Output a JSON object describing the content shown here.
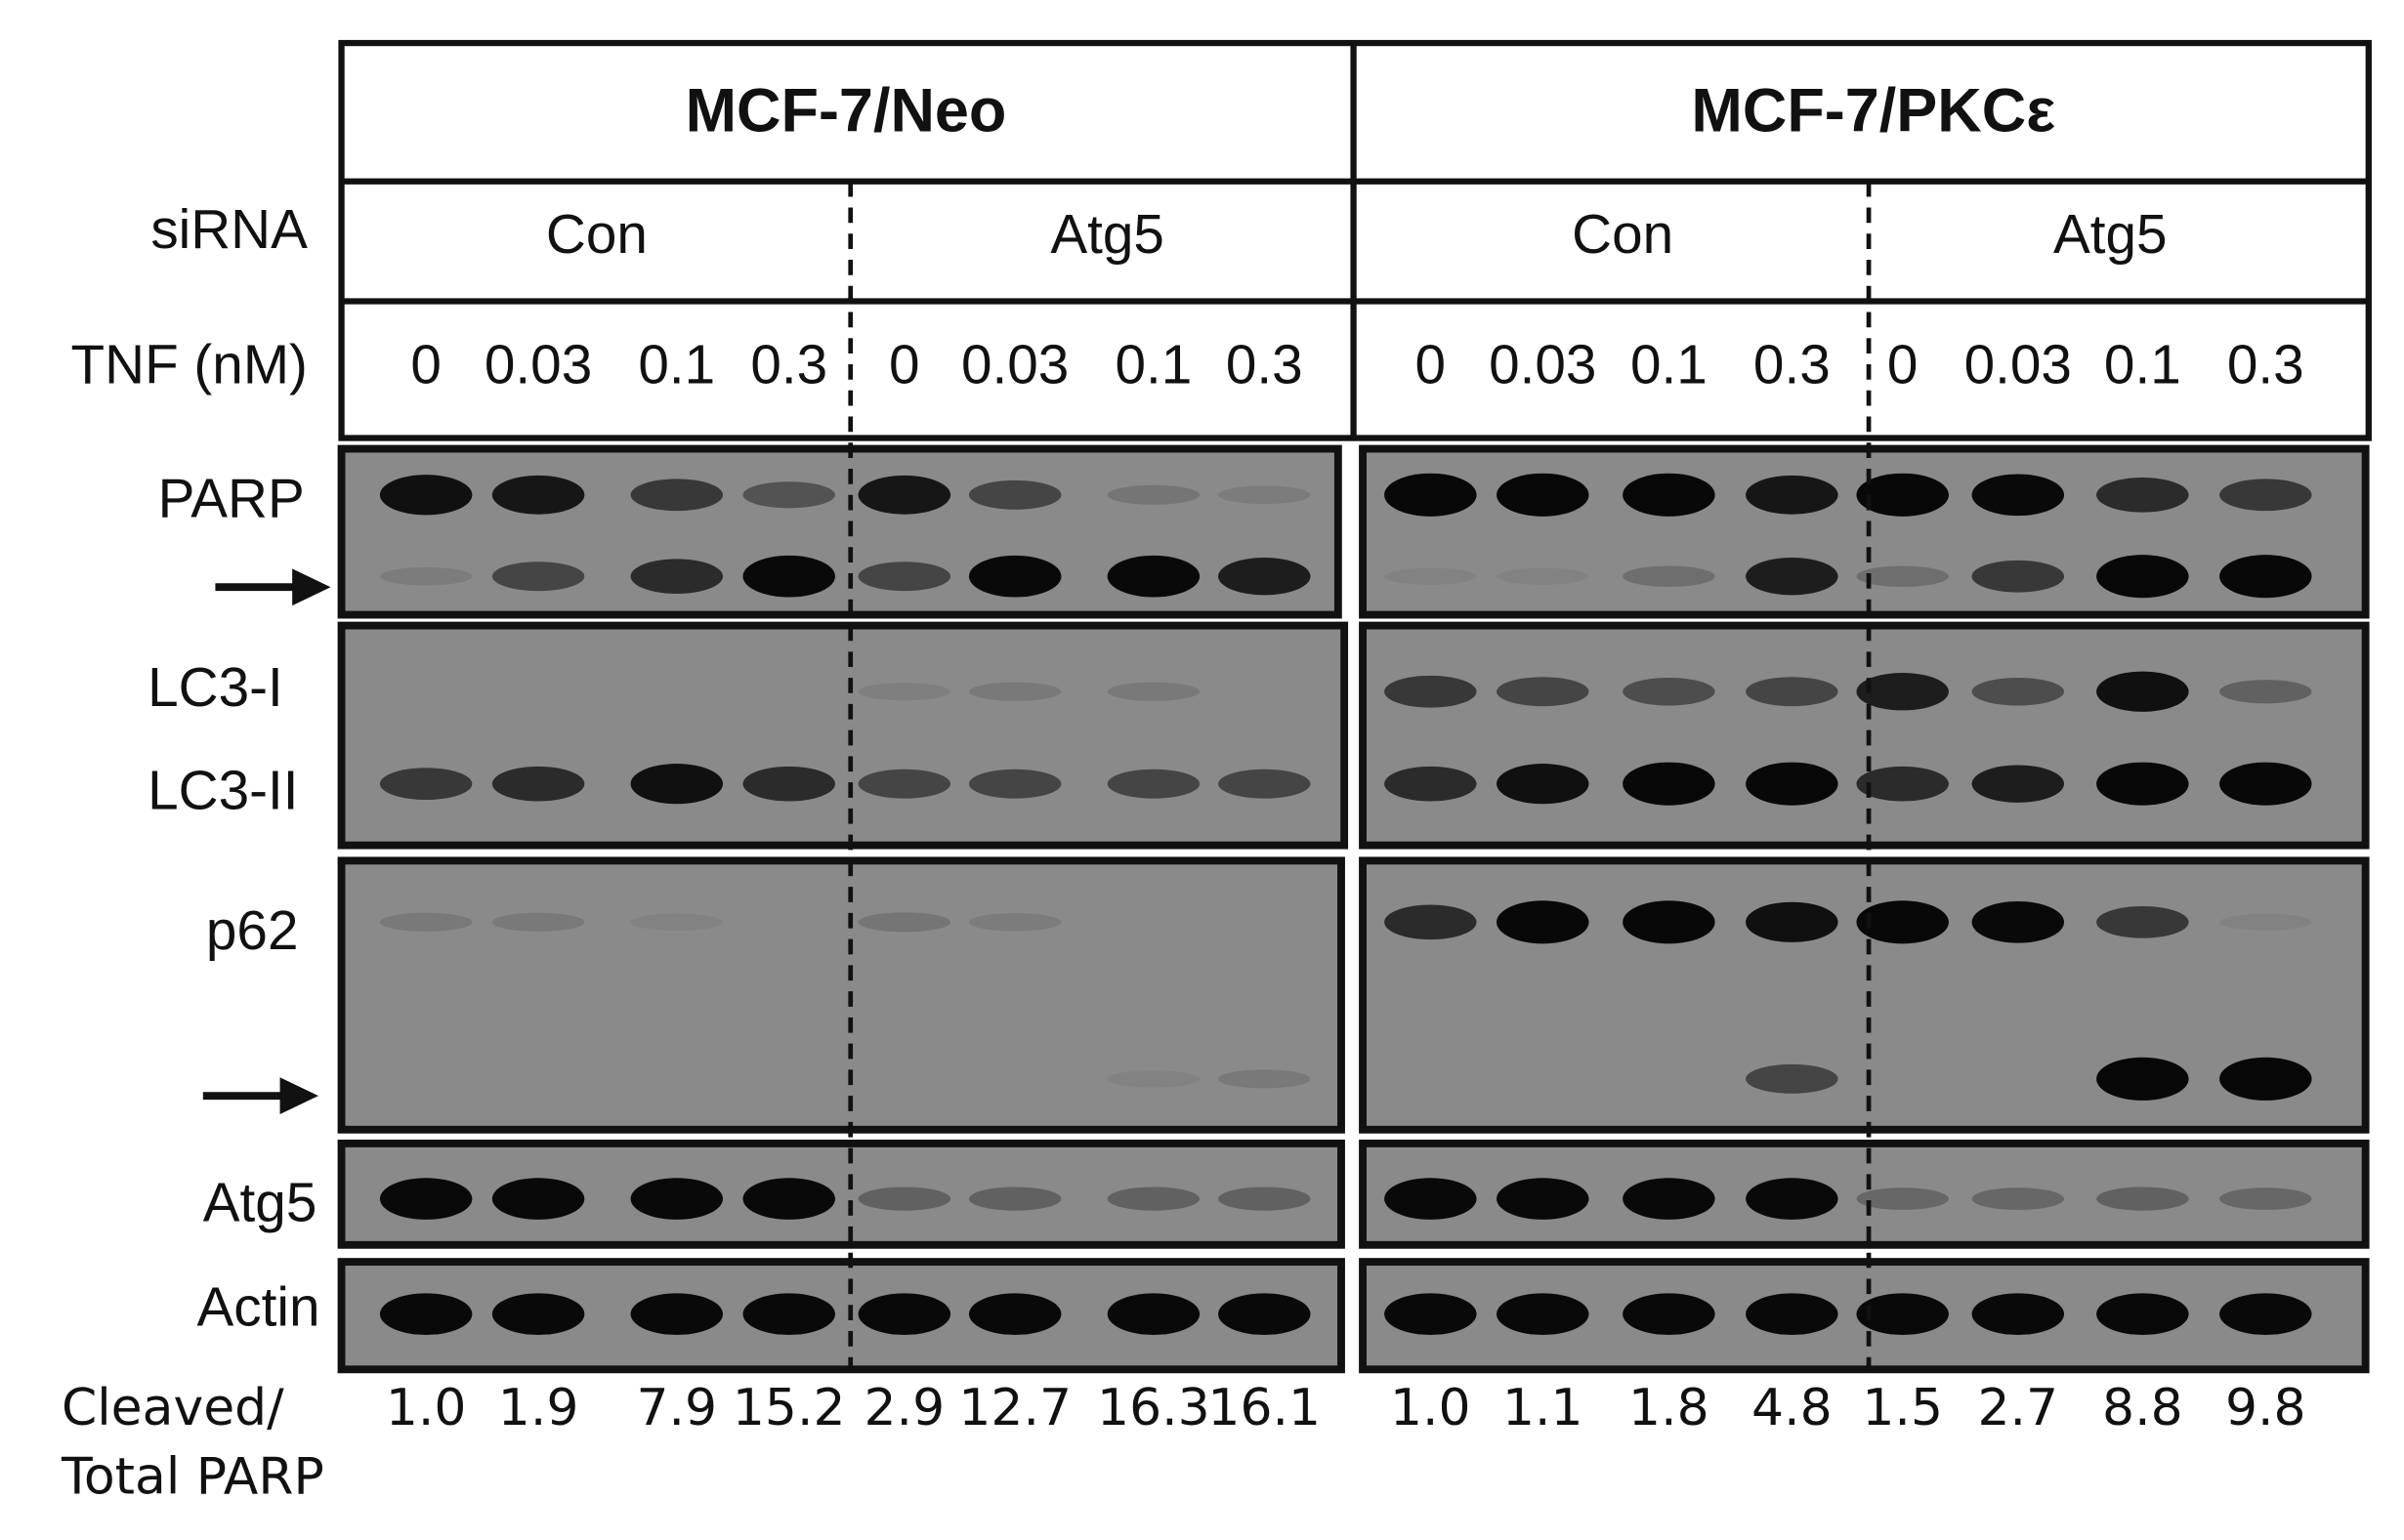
{
  "header": {
    "groups": [
      {
        "title": "MCF-7/Neo",
        "sirna": [
          "Con",
          "Atg5"
        ]
      },
      {
        "title": "MCF-7/PKCε",
        "sirna": [
          "Con",
          "Atg5"
        ]
      }
    ]
  },
  "row_labels": {
    "sirna": "siRNA",
    "tnf": "TNF (nM)"
  },
  "tnf_doses": [
    "0",
    "0.03",
    "0.1",
    "0.3",
    "0",
    "0.03",
    "0.1",
    "0.3",
    "0",
    "0.03",
    "0.1",
    "0.3",
    "0",
    "0.03",
    "0.1",
    "0.3"
  ],
  "blot_labels": [
    "PARP",
    "LC3-I",
    "LC3-II",
    "p62",
    "Atg5",
    "Actin"
  ],
  "quantification": {
    "label_lines": [
      "Cleaved/",
      "Total PARP"
    ],
    "values": [
      "1.0",
      "1.9",
      "7.9",
      "15.2",
      "2.9",
      "12.7",
      "16.3",
      "16.1",
      "1.0",
      "1.1",
      "1.8",
      "4.8",
      "1.5",
      "2.7",
      "8.8",
      "9.8"
    ]
  }
}
